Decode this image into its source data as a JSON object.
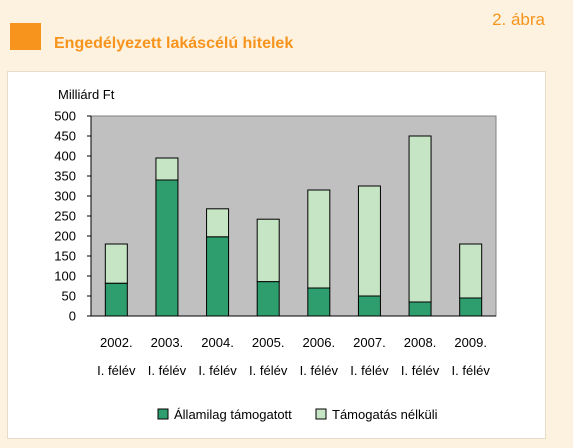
{
  "header": {
    "figure_number": "2. ábra",
    "title": "Engedélyezett lakáscélú hitelek"
  },
  "colors": {
    "accent": "#f7941d",
    "background": "#fdf2df",
    "plot_background": "#c0c0c0",
    "series_dark": "#2e9e6e",
    "series_light": "#c6e5c4"
  },
  "chart_data": {
    "type": "bar",
    "stacked": true,
    "ylabel": "Milliárd Ft",
    "ylim": [
      0,
      500
    ],
    "yticks": [
      0,
      50,
      100,
      150,
      200,
      250,
      300,
      350,
      400,
      450,
      500
    ],
    "categories": [
      "2002.",
      "2003.",
      "2004.",
      "2005.",
      "2006.",
      "2007.",
      "2008.",
      "2009."
    ],
    "category_sublabel": "I. félév",
    "series": [
      {
        "name": "Államilag támogatott",
        "color": "#2e9e6e",
        "values": [
          82,
          340,
          198,
          86,
          70,
          50,
          35,
          45
        ]
      },
      {
        "name": "Támogatás nélküli",
        "color": "#c6e5c4",
        "values": [
          98,
          55,
          70,
          156,
          245,
          275,
          415,
          135
        ]
      }
    ],
    "grid": false,
    "legend_position": "bottom"
  }
}
